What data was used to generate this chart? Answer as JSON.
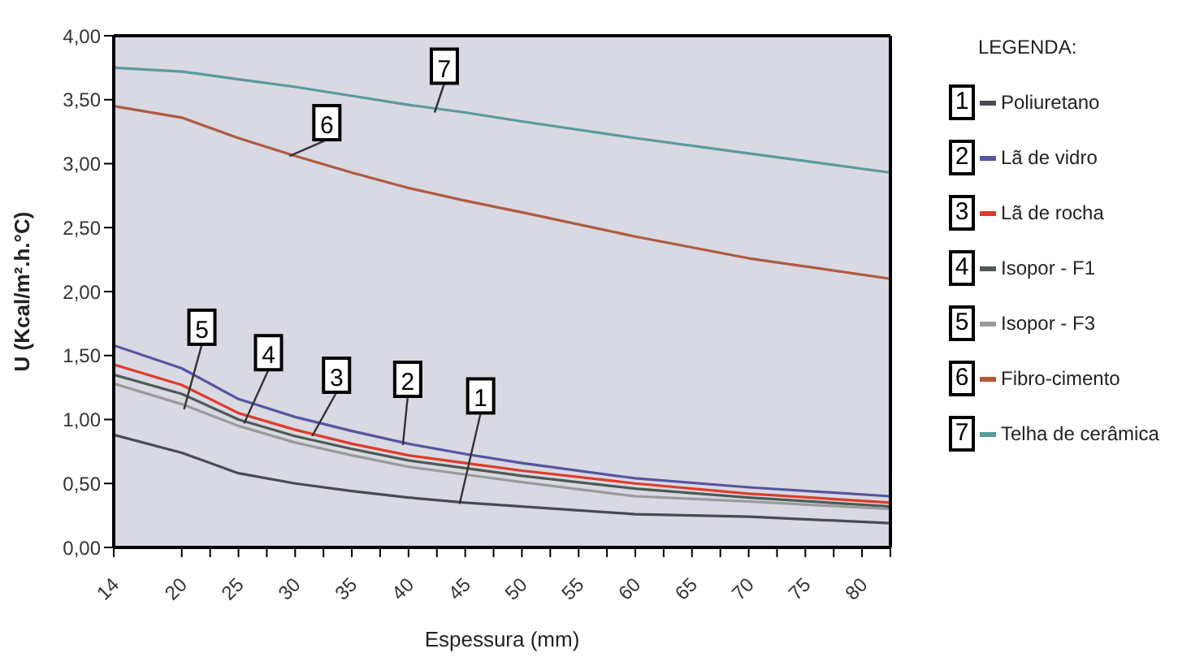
{
  "chart_data": {
    "type": "line",
    "xlabel": "Espessura (mm)",
    "ylabel": "U (Kcal/m².h.°C)",
    "legend_title": "LEGENDA:",
    "legend": "right",
    "grid": false,
    "marker": "none",
    "line_style": "solid",
    "x": [
      14,
      20,
      25,
      30,
      35,
      40,
      45,
      50,
      60,
      70,
      82.5
    ],
    "xlim": [
      14,
      82.5
    ],
    "xticks": [
      14,
      20,
      {
        "value": 22.5,
        "label": null
      },
      25,
      {
        "value": 27.5,
        "label": null
      },
      30,
      {
        "value": 32.5,
        "label": null
      },
      35,
      {
        "value": 37.5,
        "label": null
      },
      40,
      {
        "value": 42.5,
        "label": null
      },
      45,
      {
        "value": 47.5,
        "label": null
      },
      50,
      {
        "value": 52.5,
        "label": null
      },
      55,
      {
        "value": 57.5,
        "label": null
      },
      60,
      {
        "value": 62.5,
        "label": null
      },
      65,
      {
        "value": 67.5,
        "label": null
      },
      70,
      {
        "value": 72.5,
        "label": null
      },
      75,
      {
        "value": 77.5,
        "label": null
      },
      80,
      {
        "value": 82.5,
        "label": null
      }
    ],
    "ylim": [
      0,
      4
    ],
    "yticks": [
      {
        "value": 0,
        "label": "0,00"
      },
      {
        "value": 0.5,
        "label": "0,50"
      },
      {
        "value": 1,
        "label": "1,00"
      },
      {
        "value": 1.5,
        "label": "1,50"
      },
      {
        "value": 2,
        "label": "2,00"
      },
      {
        "value": 2.5,
        "label": "2,50"
      },
      {
        "value": 3,
        "label": "3,00"
      },
      {
        "value": 3.5,
        "label": "3,50"
      },
      {
        "value": 4,
        "label": "4,00"
      }
    ],
    "series": [
      {
        "name": "Poliuretano",
        "color": "#4a4a55",
        "values": [
          0.88,
          0.74,
          0.58,
          0.5,
          0.44,
          0.39,
          0.35,
          0.32,
          0.26,
          0.24,
          0.19
        ]
      },
      {
        "name": "Lã de vidro",
        "color": "#5555a0",
        "values": [
          1.58,
          1.4,
          1.16,
          1.02,
          0.91,
          0.81,
          0.73,
          0.66,
          0.54,
          0.47,
          0.4
        ]
      },
      {
        "name": "Lã de rocha",
        "color": "#e03a2a",
        "values": [
          1.43,
          1.27,
          1.05,
          0.92,
          0.81,
          0.72,
          0.66,
          0.6,
          0.5,
          0.42,
          0.35
        ]
      },
      {
        "name": "Isopor - F1",
        "color": "#4d5a55",
        "values": [
          1.35,
          1.2,
          1.0,
          0.87,
          0.77,
          0.68,
          0.62,
          0.56,
          0.46,
          0.39,
          0.32
        ]
      },
      {
        "name": "Isopor - F3",
        "color": "#9a9a9a",
        "values": [
          1.28,
          1.12,
          0.95,
          0.82,
          0.72,
          0.63,
          0.57,
          0.51,
          0.4,
          0.36,
          0.3
        ]
      },
      {
        "name": "Fibro-cimento",
        "color": "#b05a40",
        "values": [
          3.45,
          3.36,
          3.2,
          3.06,
          2.93,
          2.81,
          2.71,
          2.62,
          2.43,
          2.26,
          2.1
        ]
      },
      {
        "name": "Telha de cerâmica",
        "color": "#5a9a9a",
        "values": [
          3.75,
          3.72,
          3.66,
          3.6,
          3.53,
          3.46,
          3.4,
          3.33,
          3.2,
          3.08,
          2.93
        ]
      }
    ],
    "annotations": [
      {
        "text": "1",
        "x": 44.5,
        "y": 0.34
      },
      {
        "text": "2",
        "x": 39.5,
        "y": 0.8
      },
      {
        "text": "3",
        "x": 31.5,
        "y": 0.87
      },
      {
        "text": "4",
        "x": 25.5,
        "y": 0.97
      },
      {
        "text": "5",
        "x": 20.2,
        "y": 1.08
      },
      {
        "text": "6",
        "x": 29.5,
        "y": 3.06
      },
      {
        "text": "7",
        "x": 42.3,
        "y": 3.4
      }
    ]
  }
}
